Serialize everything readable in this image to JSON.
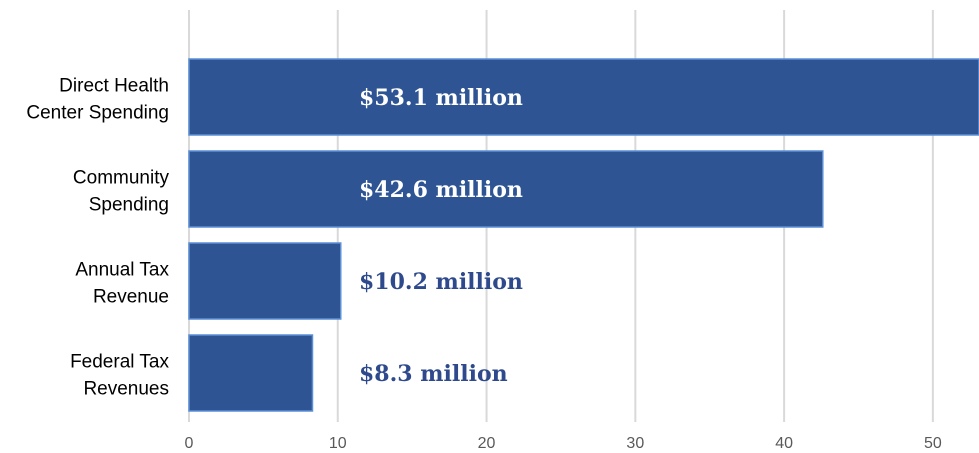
{
  "chart_data": {
    "type": "bar",
    "orientation": "horizontal",
    "categories": [
      [
        "Direct Health",
        "Center Spending"
      ],
      [
        "Community",
        "Spending"
      ],
      [
        "Annual Tax",
        "Revenue"
      ],
      [
        "Federal Tax",
        "Revenues"
      ]
    ],
    "values": [
      53.1,
      42.6,
      10.2,
      8.3
    ],
    "data_labels": [
      "$53.1 million",
      "$42.6 million",
      "$10.2 million",
      "$8.3 million"
    ],
    "xticks": [
      0,
      10,
      20,
      30,
      40,
      50
    ],
    "xlim": [
      0,
      53.1
    ],
    "grid": "vertical",
    "legend": "none",
    "colors": {
      "bar_fill": "#2e5494",
      "bar_border": "#5b8fd6",
      "label_inside": "#ffffff",
      "label_outside": "#2e4a8c"
    }
  }
}
